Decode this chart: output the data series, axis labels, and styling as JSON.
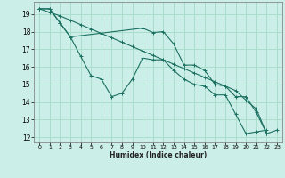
{
  "xlabel": "Humidex (Indice chaleur)",
  "bg_color": "#cceee8",
  "grid_color": "#aaddcc",
  "line_color": "#1a7060",
  "xlim": [
    -0.5,
    23.5
  ],
  "ylim": [
    11.7,
    19.7
  ],
  "yticks": [
    12,
    13,
    14,
    15,
    16,
    17,
    18,
    19
  ],
  "xticks": [
    0,
    1,
    2,
    3,
    4,
    5,
    6,
    7,
    8,
    9,
    10,
    11,
    12,
    13,
    14,
    15,
    16,
    17,
    18,
    19,
    20,
    21,
    22,
    23
  ],
  "series": [
    {
      "x": [
        0,
        1,
        2,
        3,
        4,
        5,
        6,
        7,
        8,
        9,
        10,
        11,
        12,
        13,
        14,
        15,
        16,
        17,
        18,
        19,
        20,
        21,
        22
      ],
      "y": [
        19.3,
        19.3,
        18.5,
        17.7,
        16.6,
        15.5,
        15.3,
        14.3,
        14.5,
        15.3,
        16.5,
        16.4,
        16.4,
        15.8,
        15.3,
        15.0,
        14.9,
        14.4,
        14.4,
        13.3,
        12.2,
        12.3,
        12.4
      ]
    },
    {
      "x": [
        0,
        1,
        2,
        3,
        4,
        5,
        6,
        7,
        8,
        9,
        10,
        11,
        12,
        13,
        14,
        15,
        16,
        17,
        18,
        19,
        20,
        21,
        22
      ],
      "y": [
        19.3,
        19.1,
        18.9,
        18.65,
        18.4,
        18.15,
        17.9,
        17.65,
        17.4,
        17.15,
        16.9,
        16.65,
        16.4,
        16.15,
        15.9,
        15.65,
        15.4,
        15.15,
        14.9,
        14.65,
        14.1,
        13.6,
        12.2
      ]
    },
    {
      "x": [
        0,
        1,
        2,
        3,
        10,
        11,
        12,
        13,
        14,
        15,
        16,
        17,
        18,
        19,
        20,
        21,
        22,
        23
      ],
      "y": [
        19.3,
        19.3,
        18.5,
        17.7,
        18.2,
        17.95,
        18.0,
        17.3,
        16.1,
        16.1,
        15.8,
        15.0,
        14.9,
        14.3,
        14.3,
        13.4,
        12.2,
        12.4
      ]
    }
  ]
}
